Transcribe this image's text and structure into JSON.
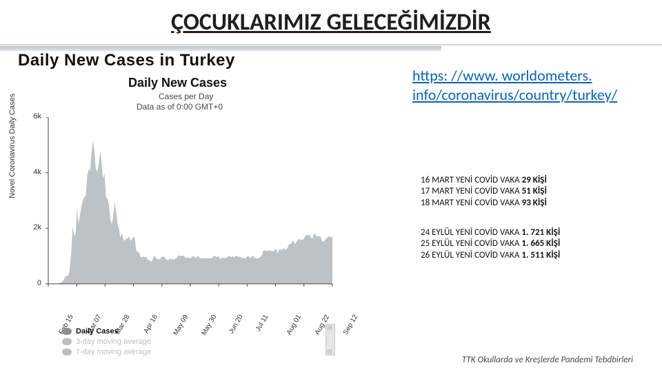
{
  "title": "ÇOCUKLARIMIZ GELECEĞİMİZDİR",
  "main_heading": "Daily New Cases in Turkey",
  "chart": {
    "type": "area",
    "title": "Daily New Cases",
    "subtitle_1": "Cases per Day",
    "subtitle_2": "Data as of 0:00 GMT+0",
    "ylabel": "Novel Coronavirus Daily Cases",
    "title_fontsize": 18,
    "label_fontsize": 12,
    "background_color": "#ffffff",
    "fill_color": "#9aa1a7",
    "fill_opacity": 0.65,
    "axis_color": "#444444",
    "grid_on": false,
    "ylim": [
      0,
      6000
    ],
    "ytick_step": 2000,
    "yticks": [
      {
        "v": 0,
        "label": "0"
      },
      {
        "v": 2000,
        "label": "2k"
      },
      {
        "v": 4000,
        "label": "4k"
      },
      {
        "v": 6000,
        "label": "6k"
      }
    ],
    "xticks": [
      "Feb 15",
      "Mar 07",
      "Mar 28",
      "Apr 18",
      "May 09",
      "May 30",
      "Jun 20",
      "Jul 11",
      "Aug 01",
      "Aug 22",
      "Sep 12"
    ],
    "series": [
      0,
      0,
      0,
      0,
      1,
      0,
      5,
      12,
      29,
      51,
      93,
      168,
      277,
      289,
      293,
      561,
      1196,
      2069,
      1704,
      1815,
      2704,
      2148,
      2456,
      2786,
      3013,
      3135,
      3148,
      3892,
      4117,
      4056,
      4747,
      5138,
      4789,
      4093,
      4062,
      4281,
      4801,
      4353,
      3783,
      3977,
      3116,
      3083,
      2861,
      2357,
      2131,
      2392,
      2936,
      2615,
      2188,
      1983,
      1670,
      1832,
      1614,
      1542,
      1639,
      1635,
      1708,
      1546,
      1610,
      1704,
      1639,
      1186,
      1158,
      1114,
      961,
      952,
      987,
      948,
      972,
      839,
      867,
      786,
      827,
      983,
      993,
      914,
      888,
      878,
      922,
      980,
      987,
      930,
      867,
      845,
      926,
      867,
      924,
      862,
      913,
      922,
      1001,
      1035,
      984,
      1024,
      1008,
      947,
      933,
      942,
      921,
      931,
      987,
      992,
      927,
      967,
      1016,
      928,
      927,
      913,
      924,
      922,
      918,
      928,
      919,
      918,
      947,
      1012,
      992,
      963,
      996,
      902,
      918,
      928,
      938,
      919,
      967,
      996,
      987,
      963,
      996,
      947,
      1012,
      992,
      963,
      996,
      933,
      942,
      921,
      931,
      987,
      992,
      927,
      967,
      1016,
      928,
      927,
      913,
      927,
      967,
      1016,
      1178,
      1212,
      1182,
      1192,
      1203,
      1183,
      1193,
      1154,
      1233,
      1256,
      1078,
      1226,
      1243,
      1212,
      1256,
      1263,
      1212,
      1309,
      1443,
      1412,
      1517,
      1549,
      1429,
      1502,
      1587,
      1612,
      1572,
      1596,
      1587,
      1706,
      1771,
      1742,
      1761,
      1673,
      1616,
      1764,
      1815,
      1709,
      1703,
      1721,
      1665,
      1511,
      1527,
      1578,
      1648,
      1692,
      1712,
      1665,
      1721
    ]
  },
  "legend": [
    {
      "label": "Daily Cases",
      "color": "#8a8f94",
      "bold": true
    },
    {
      "label": "3-day moving average",
      "color": "#bcbfc2",
      "bold": false
    },
    {
      "label": "7-day moving average",
      "color": "#bcbfc2",
      "bold": false
    }
  ],
  "link_text": "https: //www. worldometers. info/coronavirus/country/turkey/",
  "notes_group_1": [
    {
      "prefix": "16 MART YENİ COVİD VAKA ",
      "bold": "29 KİŞİ"
    },
    {
      "prefix": "17 MART YENİ COVİD VAKA ",
      "bold": "51 KİŞİ"
    },
    {
      "prefix": "18 MART YENİ COVİD VAKA ",
      "bold": "93 KİŞİ"
    }
  ],
  "notes_group_2": [
    {
      "prefix": "24 EYLÜL YENİ COVİD VAKA ",
      "bold": "1. 721 KİŞİ"
    },
    {
      "prefix": "25 EYLÜL YENİ COVİD VAKA ",
      "bold": "1. 665 KİŞİ"
    },
    {
      "prefix": "26 EYLÜL YENİ COVİD VAKA ",
      "bold": "1. 511 KİŞİ"
    }
  ],
  "footer": "TTK Okullarda ve Kreşlerde Pandemi Tebdbirleri",
  "colors": {
    "link": "#0563c1",
    "title_underline": "#000000",
    "rule": "#d0d4d8",
    "legend_muted": "#bcbfc2"
  }
}
